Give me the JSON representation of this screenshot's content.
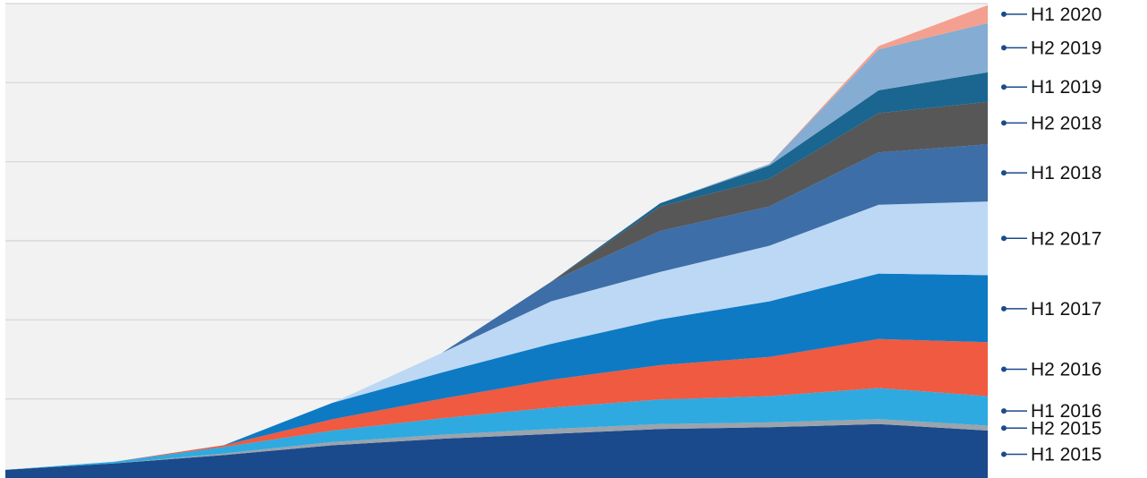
{
  "chart_data": {
    "type": "area",
    "stacked": true,
    "title": "",
    "xlabel": "",
    "ylabel": "",
    "x": [
      1,
      2,
      3,
      4,
      5,
      6,
      7,
      8,
      9,
      10
    ],
    "ylim": [
      0,
      580
    ],
    "grid": true,
    "legend": "right",
    "series": [
      {
        "name": "H1 2015",
        "color": "#1B4A8C",
        "values": [
          10,
          18,
          28,
          40,
          48,
          54,
          60,
          62,
          66,
          58
        ]
      },
      {
        "name": "H2 2015",
        "color": "#9CA3AB",
        "values": [
          0,
          0,
          2,
          4,
          5,
          6,
          6,
          6,
          6,
          6
        ]
      },
      {
        "name": "H1 2016",
        "color": "#2EAAE1",
        "values": [
          0,
          2,
          8,
          14,
          20,
          26,
          30,
          32,
          38,
          36
        ]
      },
      {
        "name": "H2 2016",
        "color": "#EF5A41",
        "values": [
          0,
          0,
          2,
          14,
          24,
          34,
          42,
          48,
          60,
          66
        ]
      },
      {
        "name": "H1 2017",
        "color": "#0E7AC4",
        "values": [
          0,
          0,
          0,
          20,
          32,
          44,
          56,
          68,
          80,
          82
        ]
      },
      {
        "name": "H2 2017",
        "color": "#BCD8F5",
        "values": [
          0,
          0,
          0,
          0,
          24,
          52,
          58,
          68,
          84,
          90
        ]
      },
      {
        "name": "H1 2018",
        "color": "#3D6EA8",
        "values": [
          0,
          0,
          0,
          0,
          0,
          24,
          50,
          48,
          64,
          70
        ]
      },
      {
        "name": "H2 2018",
        "color": "#575757",
        "values": [
          0,
          0,
          0,
          0,
          0,
          0,
          30,
          34,
          48,
          52
        ]
      },
      {
        "name": "H1 2019",
        "color": "#1A6690",
        "values": [
          0,
          0,
          0,
          0,
          0,
          0,
          4,
          16,
          28,
          36
        ]
      },
      {
        "name": "H2 2019",
        "color": "#85ACD2",
        "values": [
          0,
          0,
          0,
          0,
          0,
          0,
          0,
          2,
          50,
          60
        ]
      },
      {
        "name": "H1 2020",
        "color": "#F4A090",
        "values": [
          0,
          0,
          0,
          0,
          0,
          0,
          0,
          0,
          4,
          22
        ]
      }
    ]
  }
}
